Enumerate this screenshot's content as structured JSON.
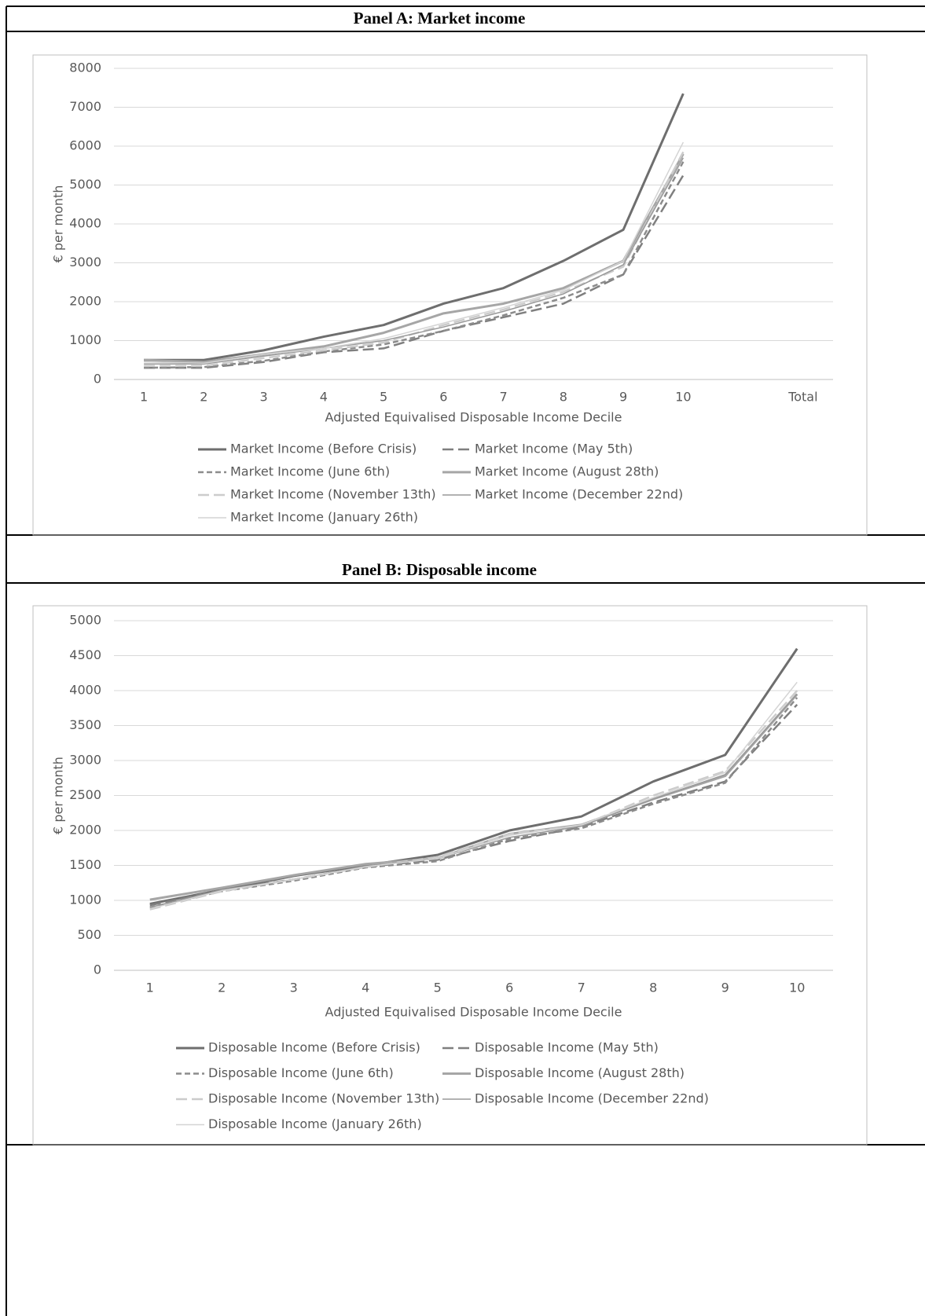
{
  "chart_data": [
    {
      "type": "line",
      "title": "Panel A: Market income",
      "y_label": "€ per month",
      "x_label": "Adjusted Equivalised Disposable Income Decile",
      "categories": [
        "1",
        "2",
        "3",
        "4",
        "5",
        "6",
        "7",
        "8",
        "9",
        "10",
        null,
        "Total"
      ],
      "ylim": [
        0,
        8000
      ],
      "yticks": [
        0,
        1000,
        2000,
        3000,
        4000,
        5000,
        6000,
        7000,
        8000
      ],
      "grid": true,
      "series": [
        {
          "name": "Market Income (Before Crisis)",
          "color": "#6e6e6e",
          "style": "solid",
          "values": [
            500,
            500,
            750,
            1100,
            1400,
            1950,
            2350,
            3050,
            3850,
            7350,
            null,
            null
          ]
        },
        {
          "name": "Market Income (May 5th)",
          "color": "#7f7f7f",
          "style": "long-dash",
          "values": [
            300,
            300,
            450,
            700,
            800,
            1250,
            1600,
            1950,
            2700,
            5250,
            null,
            null
          ]
        },
        {
          "name": "Market Income (June 6th)",
          "color": "#8c8c8c",
          "style": "dashed",
          "values": [
            300,
            320,
            480,
            720,
            900,
            1250,
            1650,
            2100,
            2700,
            5600,
            null,
            null
          ]
        },
        {
          "name": "Market Income (August 28th)",
          "color": "#a6a6a6",
          "style": "solid",
          "values": [
            500,
            450,
            650,
            850,
            1200,
            1700,
            1950,
            2350,
            3050,
            5800,
            null,
            null
          ]
        },
        {
          "name": "Market Income (November 13th)",
          "color": "#cccccc",
          "style": "long-dash",
          "values": [
            350,
            350,
            550,
            750,
            950,
            1400,
            1800,
            2250,
            2900,
            5850,
            null,
            null
          ]
        },
        {
          "name": "Market Income (December 22nd)",
          "color": "#999999",
          "style": "thin",
          "values": [
            400,
            400,
            600,
            800,
            1000,
            1350,
            1750,
            2200,
            2950,
            5700,
            null,
            null
          ]
        },
        {
          "name": "Market Income (January 26th)",
          "color": "#d4d4d4",
          "style": "thin",
          "values": [
            450,
            420,
            650,
            800,
            1050,
            1450,
            1850,
            2300,
            3050,
            6100,
            null,
            null
          ]
        }
      ]
    },
    {
      "type": "line",
      "title": "Panel B: Disposable income",
      "y_label": "€ per month",
      "x_label": "Adjusted Equivalised Disposable Income Decile",
      "categories": [
        "1",
        "2",
        "3",
        "4",
        "5",
        "6",
        "7",
        "8",
        "9",
        "10"
      ],
      "ylim": [
        0,
        5000
      ],
      "yticks": [
        0,
        500,
        1000,
        1500,
        2000,
        2500,
        3000,
        3500,
        4000,
        4500,
        5000
      ],
      "grid": true,
      "series": [
        {
          "name": "Disposable Income (Before Crisis)",
          "color": "#6e6e6e",
          "style": "solid",
          "values": [
            950,
            1150,
            1350,
            1500,
            1650,
            2000,
            2200,
            2700,
            3080,
            4600
          ]
        },
        {
          "name": "Disposable Income (May 5th)",
          "color": "#7f7f7f",
          "style": "long-dash",
          "values": [
            930,
            1150,
            1300,
            1480,
            1580,
            1850,
            2050,
            2400,
            2700,
            3800
          ]
        },
        {
          "name": "Disposable Income (June 6th)",
          "color": "#8c8c8c",
          "style": "dashed",
          "values": [
            900,
            1130,
            1280,
            1470,
            1560,
            1880,
            2030,
            2380,
            2680,
            3900
          ]
        },
        {
          "name": "Disposable Income (August 28th)",
          "color": "#a6a6a6",
          "style": "solid",
          "values": [
            1010,
            1180,
            1360,
            1520,
            1600,
            1950,
            2080,
            2450,
            2780,
            3950
          ]
        },
        {
          "name": "Disposable Income (November 13th)",
          "color": "#cccccc",
          "style": "long-dash",
          "values": [
            870,
            1130,
            1300,
            1480,
            1620,
            1950,
            2070,
            2500,
            2850,
            4000
          ]
        },
        {
          "name": "Disposable Income (December 22nd)",
          "color": "#999999",
          "style": "thin",
          "values": [
            900,
            1150,
            1300,
            1490,
            1600,
            1900,
            2060,
            2450,
            2800,
            3950
          ]
        },
        {
          "name": "Disposable Income (January 26th)",
          "color": "#d4d4d4",
          "style": "thin",
          "values": [
            880,
            1140,
            1300,
            1480,
            1600,
            1930,
            2080,
            2470,
            2830,
            4120
          ]
        }
      ]
    }
  ]
}
